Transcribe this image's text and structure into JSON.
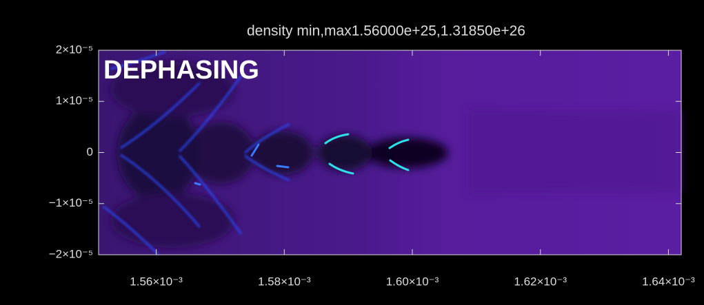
{
  "chart_data": {
    "type": "heatmap",
    "title": "density min,max1.56000e+25,1.31850e+26",
    "annotation": "DEPHASING",
    "xlim": [
      0.001551,
      0.001642
    ],
    "ylim": [
      -2e-05,
      2e-05
    ],
    "xticks": [
      {
        "value": 0.00156,
        "label": "1.56×10⁻³"
      },
      {
        "value": 0.00158,
        "label": "1.58×10⁻³"
      },
      {
        "value": 0.0016,
        "label": "1.60×10⁻³"
      },
      {
        "value": 0.00162,
        "label": "1.62×10⁻³"
      },
      {
        "value": 0.00164,
        "label": "1.64×10⁻³"
      }
    ],
    "yticks": [
      {
        "value": 2e-05,
        "label": "2×10⁻⁵"
      },
      {
        "value": 1e-05,
        "label": "1×10⁻⁵"
      },
      0,
      {
        "value": -1e-05,
        "label": "−1×10⁻⁵"
      },
      {
        "value": -2e-05,
        "label": "−2×10⁻⁵"
      }
    ]
  }
}
